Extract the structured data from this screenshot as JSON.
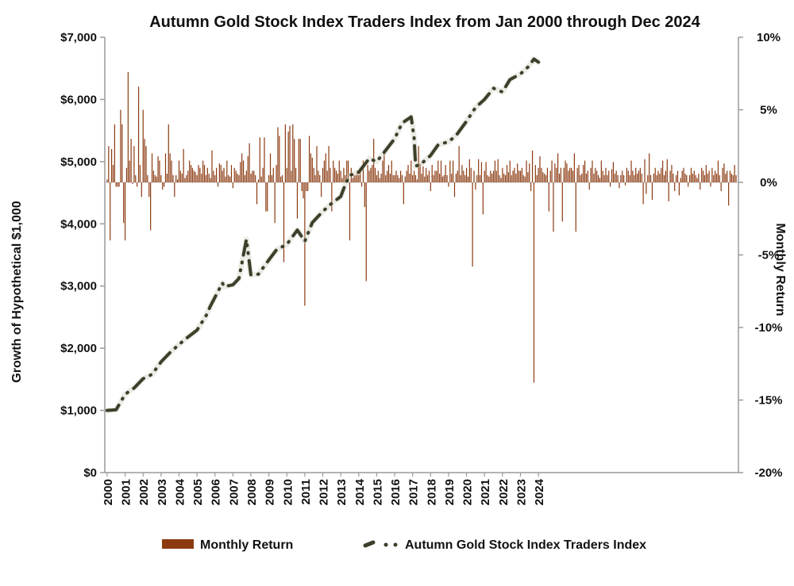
{
  "chart_data": {
    "type": "bar+line",
    "title": "Autumn Gold Stock Index Traders Index from Jan 2000 through Dec 2024",
    "y_left_label": "Growth of Hypothetical $1,000",
    "y_right_label": "Monthly Return",
    "y_left_ticks": [
      "$0",
      "$1,000",
      "$2,000",
      "$3,000",
      "$4,000",
      "$5,000",
      "$6,000",
      "$7,000"
    ],
    "y_left_range": [
      0,
      7000
    ],
    "y_right_ticks": [
      "-20%",
      "-15%",
      "-10%",
      "-5%",
      "0%",
      "5%",
      "10%"
    ],
    "y_right_range": [
      -20,
      10
    ],
    "x_ticks": [
      "2000",
      "2001",
      "2002",
      "2003",
      "2004",
      "2005",
      "2006",
      "2007",
      "2008",
      "2009",
      "2010",
      "2011",
      "2012",
      "2013",
      "2014",
      "2015",
      "2016",
      "2017",
      "2018",
      "2019",
      "2020",
      "2021",
      "2022",
      "2023",
      "2024"
    ],
    "grid": false,
    "legend_position": "bottom",
    "series": [
      {
        "name": "Monthly Return",
        "kind": "bar",
        "axis": "right",
        "color": "#8B3A10",
        "start": "2000-01",
        "values": [
          0.2,
          2.5,
          -4,
          2.3,
          1.2,
          4,
          -0.3,
          -0.3,
          -0.3,
          5,
          4,
          -2.8,
          -4,
          1,
          7.6,
          1.5,
          3,
          -0.1,
          2.5,
          0.5,
          -0.3,
          6.6,
          1.2,
          -1,
          5,
          3,
          2.5,
          0.5,
          -1,
          -3.3,
          2,
          0.8,
          0.5,
          0.4,
          1.8,
          1.5,
          0.5,
          -0.5,
          -0.3,
          2,
          0.6,
          4,
          2,
          1.5,
          0.5,
          -1,
          0.5,
          0.2,
          1.5,
          0.8,
          0.6,
          2.3,
          0.3,
          0.5,
          0.8,
          1.5,
          1.2,
          1,
          0.8,
          0.7,
          0.5,
          1.2,
          1,
          0.6,
          1.5,
          1.2,
          0.5,
          1,
          0.6,
          0.3,
          2.2,
          0.8,
          0.5,
          1,
          -0.3,
          1.3,
          1.2,
          0.8,
          1,
          0.4,
          1.5,
          0.5,
          0.4,
          1.2,
          -0.4,
          1,
          0.8,
          0.6,
          0.5,
          1.4,
          2,
          1.5,
          0.5,
          0.8,
          1.8,
          2.7,
          0.6,
          0.8,
          0.8,
          0.5,
          -1.5,
          0.2,
          3.1,
          0.4,
          1,
          3.1,
          -2,
          -2,
          0.5,
          2,
          0.5,
          1,
          -2.8,
          1.2,
          3.8,
          3.2,
          0.4,
          0.5,
          -5.5,
          4,
          1,
          3.5,
          3.9,
          0.8,
          4,
          3,
          1,
          -2.5,
          3,
          3,
          -0.6,
          -1.1,
          -8.5,
          -0.6,
          -0.6,
          3.2,
          2,
          1.7,
          1,
          0.5,
          2.5,
          0.8,
          0.5,
          -1,
          1,
          1.5,
          2,
          0.8,
          2.5,
          1,
          -2,
          1.5,
          1,
          0.8,
          0.6,
          1.5,
          0.8,
          0.3,
          1,
          0.5,
          1.5,
          1.5,
          -4,
          1,
          0.3,
          0.5,
          0.5,
          0.8,
          0.5,
          1,
          -0.3,
          1.5,
          -1.7,
          -6.8,
          1.2,
          0.8,
          1,
          1.2,
          3,
          1,
          0.5,
          0.8,
          0.3,
          0.6,
          1.5,
          2,
          0.5,
          0.8,
          1.2,
          0.6,
          1.5,
          0.5,
          0.5,
          0.8,
          0.5,
          0.3,
          0.8,
          0.5,
          -1.5,
          0.4,
          0.8,
          1.2,
          0.6,
          1.5,
          0.5,
          0.8,
          0.5,
          0.2,
          2.5,
          1.3,
          0.6,
          1.1,
          0.4,
          1,
          0.5,
          0.8,
          -0.6,
          1.2,
          0.5,
          0.8,
          0.8,
          1.5,
          0.6,
          1.5,
          0.4,
          0.5,
          1.2,
          0.5,
          -0.3,
          1.5,
          0.6,
          1.5,
          -1,
          0.6,
          0.8,
          2.5,
          0.5,
          1.2,
          0.8,
          0.5,
          1,
          0.4,
          1.6,
          1,
          -5.8,
          0.8,
          -0.5,
          0.5,
          1.6,
          0.5,
          1.4,
          -2.2,
          0.8,
          1.4,
          0.5,
          0.4,
          0.8,
          0.6,
          0.8,
          1.5,
          0.8,
          1.6,
          0.5,
          0.3,
          1,
          0.6,
          0.5,
          1.2,
          0.7,
          1.5,
          0.5,
          0.8,
          1,
          0.6,
          1.3,
          0.8,
          0.8,
          1,
          0.5,
          0.4,
          1.5,
          0.7,
          1.3,
          -0.6,
          2.2,
          -13.8,
          1.2,
          0.5,
          1,
          1.8,
          1,
          0.7,
          0.6,
          0.5,
          1,
          -2,
          0.8,
          1.5,
          -3.4,
          1.3,
          1,
          2,
          0.6,
          1,
          -2.7,
          1,
          1.5,
          1.3,
          0.8,
          1,
          1,
          0.8,
          2,
          -3.4,
          1,
          1.2,
          0.5,
          0.6,
          1.2,
          1.5,
          0.6,
          0.8,
          -0.5,
          1,
          1.5,
          0.6,
          1,
          0.8,
          0.5,
          0.3,
          1.5,
          0.8,
          0.5,
          1,
          0.5,
          0.8,
          -0.3,
          0.9,
          1.4,
          0.6,
          0.8,
          0.5,
          -0.4,
          0.5,
          0.8,
          0.5,
          -0.2,
          1,
          0.8,
          0.5,
          1.5,
          0.8,
          0.5,
          1,
          0.6,
          0.8,
          1,
          0.6,
          -1.5,
          1.6,
          -0.8,
          0.5,
          2,
          0.5,
          -1.2,
          0.6,
          1,
          0.5,
          0.8,
          0.6,
          1,
          1.5,
          0.5,
          0.8,
          1.6,
          -1.3,
          0.8,
          1.2,
          0.6,
          -0.6,
          0.5,
          0.8,
          -0.9,
          0.3,
          0.8,
          1,
          0.6,
          0.5,
          -0.3,
          0.5,
          1,
          0.6,
          0.8,
          0.5,
          0.3,
          0.6,
          -0.5,
          1,
          0.8,
          0.5,
          1.2,
          0.6,
          0.8,
          -0.3,
          1,
          0.5,
          0.8,
          0.6,
          1.5,
          0.5,
          -0.6,
          1,
          1.3,
          0.6,
          0.8,
          -1.6,
          0.8,
          0.6,
          0.5,
          1.2,
          0.5
        ]
      },
      {
        "name": "Autumn Gold Stock Index Traders Index",
        "kind": "line",
        "axis": "left",
        "color": "#3d3f2a",
        "points": [
          [
            "2000-01",
            1000
          ],
          [
            "2000-07",
            1010
          ],
          [
            "2001-01",
            1260
          ],
          [
            "2001-07",
            1360
          ],
          [
            "2002-01",
            1510
          ],
          [
            "2002-07",
            1580
          ],
          [
            "2003-01",
            1780
          ],
          [
            "2003-07",
            1930
          ],
          [
            "2004-01",
            2060
          ],
          [
            "2004-07",
            2180
          ],
          [
            "2005-01",
            2290
          ],
          [
            "2005-07",
            2520
          ],
          [
            "2005-10",
            2680
          ],
          [
            "2006-06",
            3050
          ],
          [
            "2006-07",
            2990
          ],
          [
            "2007-01",
            3020
          ],
          [
            "2007-05",
            3120
          ],
          [
            "2007-10",
            3750
          ],
          [
            "2008-01",
            3180
          ],
          [
            "2008-06",
            3190
          ],
          [
            "2009-01",
            3420
          ],
          [
            "2009-06",
            3580
          ],
          [
            "2010-01",
            3670
          ],
          [
            "2010-08",
            3900
          ],
          [
            "2011-01",
            3720
          ],
          [
            "2011-06",
            4020
          ],
          [
            "2012-01",
            4200
          ],
          [
            "2012-07",
            4330
          ],
          [
            "2013-01",
            4440
          ],
          [
            "2013-04",
            4630
          ],
          [
            "2013-07",
            4780
          ],
          [
            "2014-01",
            4830
          ],
          [
            "2014-08",
            5050
          ],
          [
            "2015-01",
            5000
          ],
          [
            "2015-06",
            5150
          ],
          [
            "2016-01",
            5370
          ],
          [
            "2016-06",
            5620
          ],
          [
            "2016-12",
            5720
          ],
          [
            "2017-02",
            5380
          ],
          [
            "2017-03",
            4930
          ],
          [
            "2017-06",
            4950
          ],
          [
            "2018-01",
            5100
          ],
          [
            "2018-06",
            5270
          ],
          [
            "2019-01",
            5320
          ],
          [
            "2019-06",
            5420
          ],
          [
            "2020-01",
            5650
          ],
          [
            "2020-07",
            5870
          ],
          [
            "2021-01",
            6000
          ],
          [
            "2021-07",
            6180
          ],
          [
            "2022-01",
            6120
          ],
          [
            "2022-06",
            6320
          ],
          [
            "2023-01",
            6410
          ],
          [
            "2023-06",
            6520
          ],
          [
            "2023-10",
            6650
          ],
          [
            "2024-01",
            6600
          ]
        ]
      }
    ]
  }
}
